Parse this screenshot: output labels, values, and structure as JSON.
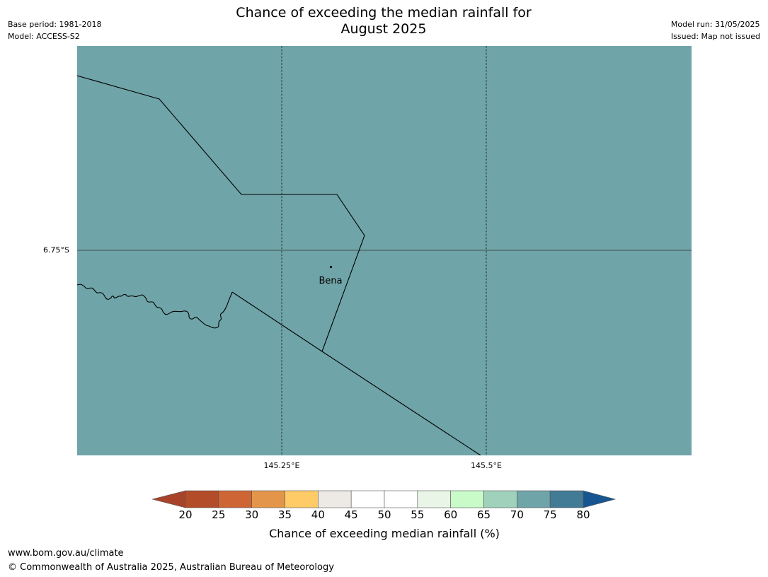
{
  "title": {
    "line1": "Chance of exceeding the median rainfall for",
    "line2": "August 2025"
  },
  "meta_left": {
    "base_period": "Base period: 1981-2018",
    "model": "Model: ACCESS-S2"
  },
  "meta_right": {
    "model_run": "Model run: 31/05/2025",
    "issued": "Issued: Map not issued"
  },
  "map": {
    "fill_color": "#6fa4a8",
    "place": "Bena",
    "lat_label": "6.75°S",
    "lon_labels": [
      "145.25°E",
      "145.5°E"
    ]
  },
  "colorbar": {
    "ticks": [
      "20",
      "25",
      "30",
      "35",
      "40",
      "45",
      "50",
      "55",
      "60",
      "65",
      "70",
      "75",
      "80"
    ],
    "colors": [
      "#a8432a",
      "#b34c28",
      "#cd6634",
      "#e3964a",
      "#fecb66",
      "#ede9e4",
      "#ffffff",
      "#ffffff",
      "#e8f5e7",
      "#c8fbc8",
      "#9fd1bb",
      "#6fa4a8",
      "#427b95",
      "#175590"
    ],
    "label": "Chance of exceeding median rainfall (%)"
  },
  "footer": {
    "url": "www.bom.gov.au/climate",
    "copyright": "© Commonwealth of Australia 2025, Australian Bureau of Meteorology"
  }
}
